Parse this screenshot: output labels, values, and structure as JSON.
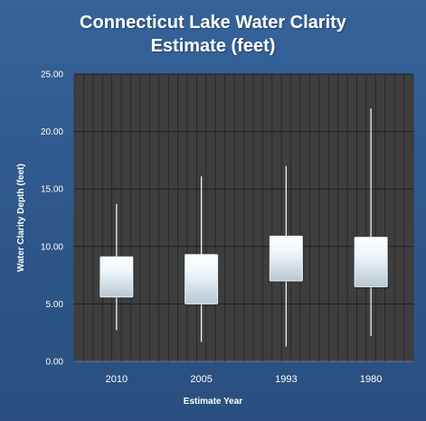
{
  "chart_data": {
    "type": "box",
    "title": [
      "Connecticut Lake Water Clarity",
      "Estimate (feet)"
    ],
    "xlabel": "Estimate Year",
    "ylabel": "Water Clarity Depth (feet)",
    "categories": [
      "2010",
      "2005",
      "1993",
      "1980"
    ],
    "yticks": [
      "0.00",
      "5.00",
      "10.00",
      "15.00",
      "20.00",
      "25.00"
    ],
    "ylim": [
      0,
      25
    ],
    "grid": true,
    "legend": "none",
    "series": [
      {
        "boxes": [
          {
            "min": 2.7,
            "q1": 5.6,
            "q3": 9.1,
            "max": 13.7
          },
          {
            "min": 1.7,
            "q1": 5.0,
            "q3": 9.3,
            "max": 16.1
          },
          {
            "min": 1.3,
            "q1": 7.0,
            "q3": 10.9,
            "max": 17.0
          },
          {
            "min": 2.2,
            "q1": 6.5,
            "q3": 10.8,
            "max": 22.0
          }
        ]
      }
    ],
    "colors": {
      "background": "#2f5587",
      "plot_area": "#3e3e3e",
      "grid": "#1f1f1f",
      "box_light": "#f4fbff",
      "box_dark": "#b8c6d2",
      "whisker": "#ffffff",
      "text": "#ffffff"
    }
  }
}
